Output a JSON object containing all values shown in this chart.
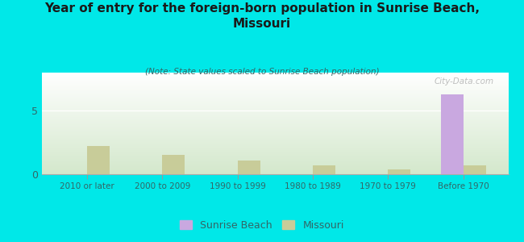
{
  "title": "Year of entry for the foreign-born population in Sunrise Beach,\nMissouri",
  "subtitle": "(Note: State values scaled to Sunrise Beach population)",
  "categories": [
    "2010 or later",
    "2000 to 2009",
    "1990 to 1999",
    "1980 to 1989",
    "1970 to 1979",
    "Before 1970"
  ],
  "sunrise_beach_values": [
    0,
    0,
    0,
    0,
    0,
    6.3
  ],
  "missouri_values": [
    2.2,
    1.5,
    1.1,
    0.7,
    0.35,
    0.7
  ],
  "sunrise_beach_color": "#c9a8e0",
  "missouri_color": "#c8cc99",
  "background_outer": "#00e8e8",
  "title_color": "#1a1a1a",
  "subtitle_color": "#336666",
  "tick_color": "#336666",
  "ylim": [
    0,
    8
  ],
  "yticks": [
    0,
    5
  ],
  "bar_width": 0.3,
  "watermark": "City-Data.com",
  "gradient_top": "#ffffff",
  "gradient_bottom": "#d4e8cc"
}
